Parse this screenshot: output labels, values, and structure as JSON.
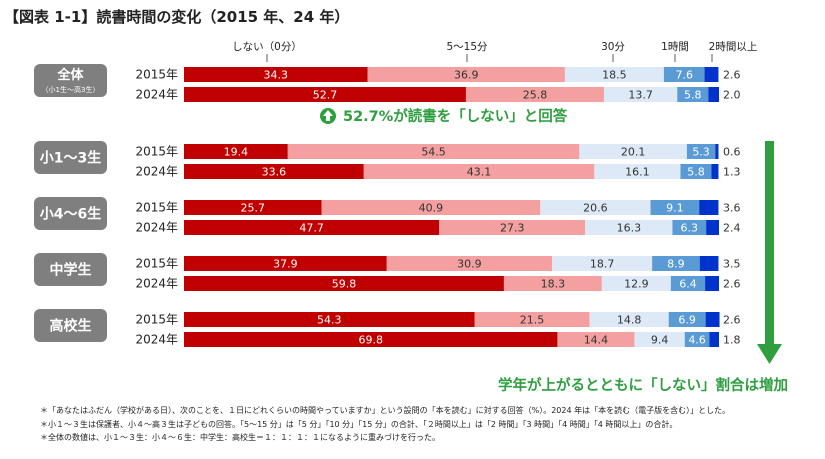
{
  "title": "【図表 1-1】読書時間の変化（2015 年、24 年）",
  "chart_data": {
    "type": "bar",
    "stacked": true,
    "orientation": "horizontal",
    "unit": "%",
    "legend_labels": [
      "しない（0分）",
      "5～15分",
      "30分",
      "1時間",
      "2時間以上"
    ],
    "colors": [
      "#c00000",
      "#f4a0a0",
      "#dde9f7",
      "#5b9bd5",
      "#0033cc"
    ],
    "groups": [
      {
        "label": "全体",
        "sublabel": "（小1生～高3生）",
        "rows": [
          {
            "year": "2015年",
            "values": [
              34.3,
              36.9,
              18.5,
              7.6,
              2.6
            ]
          },
          {
            "year": "2024年",
            "values": [
              52.7,
              25.8,
              13.7,
              5.8,
              2.0
            ]
          }
        ]
      },
      {
        "label": "小1～3生",
        "rows": [
          {
            "year": "2015年",
            "values": [
              19.4,
              54.5,
              20.1,
              5.3,
              0.6
            ]
          },
          {
            "year": "2024年",
            "values": [
              33.6,
              43.1,
              16.1,
              5.8,
              1.3
            ]
          }
        ]
      },
      {
        "label": "小4～6生",
        "rows": [
          {
            "year": "2015年",
            "values": [
              25.7,
              40.9,
              20.6,
              9.1,
              3.6
            ]
          },
          {
            "year": "2024年",
            "values": [
              47.7,
              27.3,
              16.3,
              6.3,
              2.4
            ]
          }
        ]
      },
      {
        "label": "中学生",
        "rows": [
          {
            "year": "2015年",
            "values": [
              37.9,
              30.9,
              18.7,
              8.9,
              3.5
            ]
          },
          {
            "year": "2024年",
            "values": [
              59.8,
              18.3,
              12.9,
              6.4,
              2.6
            ]
          }
        ]
      },
      {
        "label": "高校生",
        "rows": [
          {
            "year": "2015年",
            "values": [
              54.3,
              21.5,
              14.8,
              6.9,
              2.6
            ]
          },
          {
            "year": "2024年",
            "values": [
              69.8,
              14.4,
              9.4,
              4.6,
              1.8
            ]
          }
        ]
      }
    ],
    "annotations": {
      "highlight": "52.7%が読書を「しない」と回答",
      "trend": "学年が上がるとともに「しない」割合は増加",
      "highlight_color": "#2e9e3f"
    }
  },
  "notes": [
    "＊「あなたはふだん（学校がある日）、次のことを、１日にどれくらいの時間やっていますか」という設問の「本を読む」に対する回答（%）。2024 年は「本を読む（電子版を含む）」とした。",
    "＊小１～３生は保護者、小４～高３生は子どもの回答。「5～15 分」は「5 分」「10 分」「15 分」の合計、「２時間以上」は「2 時間」「3 時間」「4 時間」「4 時間以上」の合計。",
    "＊全体の数値は、小１～３生：小４～６生：中学生：高校生＝１：１：１：１になるように重みづけを行った。"
  ]
}
